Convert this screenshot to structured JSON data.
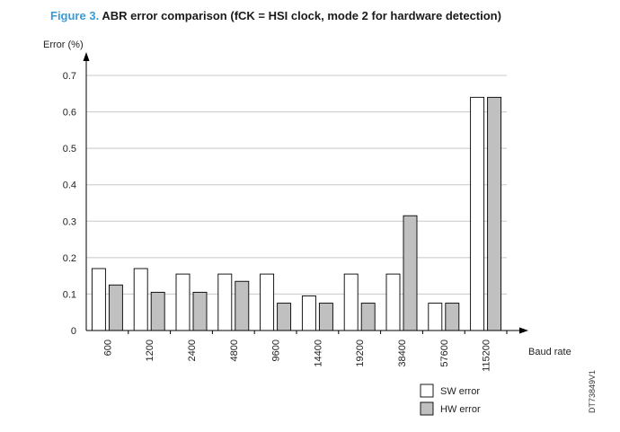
{
  "figure": {
    "number": "Figure 3.",
    "title": "ABR error comparison (fCK = HSI clock, mode 2 for hardware detection)"
  },
  "side_code": "DT73849V1",
  "chart_data": {
    "type": "bar",
    "title": "ABR error comparison (fCK = HSI clock, mode 2 for hardware detection)",
    "xlabel": "Baud rate",
    "ylabel": "Error (%)",
    "ylim": [
      0,
      0.7
    ],
    "yticks": [
      "0",
      "0.1",
      "0.2",
      "0.3",
      "0.4",
      "0.5",
      "0.6",
      "0.7"
    ],
    "grid": "horizontal",
    "legend_position": "bottom-right",
    "categories": [
      "600",
      "1200",
      "2400",
      "4800",
      "9600",
      "14400",
      "19200",
      "38400",
      "57600",
      "115200"
    ],
    "series": [
      {
        "name": "SW error",
        "color": "#ffffff",
        "values": [
          0.17,
          0.17,
          0.155,
          0.155,
          0.155,
          0.095,
          0.155,
          0.155,
          0.075,
          0.64
        ]
      },
      {
        "name": "HW error",
        "color": "#c0c0c0",
        "values": [
          0.125,
          0.105,
          0.105,
          0.135,
          0.075,
          0.075,
          0.075,
          0.315,
          0.075,
          0.64
        ]
      }
    ]
  }
}
